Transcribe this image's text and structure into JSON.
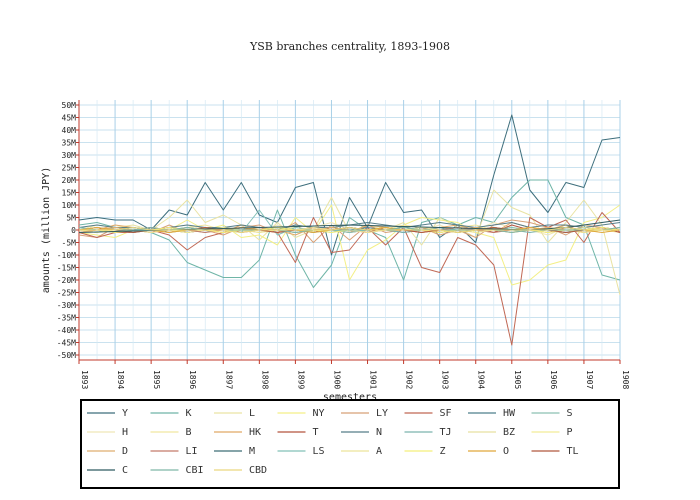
{
  "chart_data": {
    "type": "line",
    "title": "YSB branches centrality, 1893-1908",
    "xlabel": "semesters",
    "ylabel": "amounts (million JPY)",
    "x": [
      1893,
      1893.5,
      1894,
      1894.5,
      1895,
      1895.5,
      1896,
      1896.5,
      1897,
      1897.5,
      1898,
      1898.5,
      1899,
      1899.5,
      1900,
      1900.5,
      1901,
      1901.5,
      1902,
      1902.5,
      1903,
      1903.5,
      1904,
      1904.5,
      1905,
      1905.5,
      1906,
      1906.5,
      1907,
      1907.5,
      1908
    ],
    "xlim": [
      1893,
      1908
    ],
    "xticks": [
      "1893",
      "1894",
      "1895",
      "1896",
      "1897",
      "1898",
      "1899",
      "1900",
      "1901",
      "1902",
      "1903",
      "1904",
      "1905",
      "1906",
      "1907",
      "1908"
    ],
    "ylim": [
      -52,
      52
    ],
    "yticks": [
      "50M",
      "45M",
      "40M",
      "35M",
      "30M",
      "25M",
      "20M",
      "15M",
      "10M",
      "5M",
      "0",
      "-5M",
      "-10M",
      "-15M",
      "-20M",
      "-25M",
      "-30M",
      "-35M",
      "-40M",
      "-45M",
      "-50M"
    ],
    "ytick_values": [
      50,
      45,
      40,
      35,
      30,
      25,
      20,
      15,
      10,
      5,
      0,
      -5,
      -10,
      -15,
      -20,
      -25,
      -30,
      -35,
      -40,
      -45,
      -50
    ],
    "grid": true,
    "legend_position": "bottom",
    "series": [
      {
        "name": "Y",
        "color": "#3d6e7c",
        "values": [
          4,
          5,
          4,
          4,
          0,
          8,
          6,
          19,
          8,
          19,
          6,
          3,
          17,
          19,
          -10,
          13,
          1,
          19,
          7,
          8,
          -3,
          2,
          -5,
          22,
          46,
          16,
          7,
          19,
          17,
          36,
          37
        ]
      },
      {
        "name": "K",
        "color": "#6fb5a7",
        "values": [
          2,
          3,
          1,
          0,
          -1,
          -4,
          -13,
          -16,
          -19,
          -19,
          -12,
          8,
          -10,
          -23,
          -14,
          5,
          0,
          -3,
          -20,
          3,
          5,
          2,
          5,
          3,
          13,
          20,
          20,
          5,
          2,
          -18,
          -20
        ]
      },
      {
        "name": "L",
        "color": "#e9e3a3",
        "values": [
          0,
          2,
          1,
          2,
          0,
          5,
          12,
          3,
          6,
          2,
          -4,
          3,
          -3,
          0,
          13,
          -1,
          2,
          0,
          3,
          -6,
          5,
          1,
          -3,
          16,
          9,
          6,
          -5,
          3,
          12,
          2,
          -26
        ]
      },
      {
        "name": "NY",
        "color": "#f3ef86",
        "values": [
          -1,
          -2,
          -3,
          0,
          1,
          0,
          4,
          0,
          2,
          -3,
          -2,
          -6,
          5,
          -1,
          10,
          -20,
          -8,
          -4,
          2,
          5,
          4,
          3,
          -1,
          -3,
          -22,
          -20,
          -14,
          -12,
          3,
          5,
          10
        ]
      },
      {
        "name": "LY",
        "color": "#d8a178",
        "values": [
          -2,
          -3,
          1,
          0,
          -1,
          2,
          -1,
          0,
          -2,
          1,
          2,
          -1,
          3,
          -5,
          2,
          -4,
          2,
          -1,
          0,
          1,
          -2,
          0,
          -3,
          2,
          4,
          3,
          1,
          -2,
          2,
          1,
          -1
        ]
      },
      {
        "name": "SF",
        "color": "#c06855",
        "values": [
          -1,
          -3,
          -1,
          -1,
          0,
          -2,
          -8,
          -3,
          -1,
          0,
          1,
          -1,
          -13,
          5,
          -9,
          -8,
          1,
          -6,
          1,
          -15,
          -17,
          -3,
          -6,
          -14,
          -46,
          5,
          1,
          4,
          -5,
          7,
          -1
        ]
      },
      {
        "name": "HW",
        "color": "#4d7f8c",
        "values": [
          1,
          0,
          -1,
          0,
          1,
          -1,
          0,
          1,
          0,
          0,
          1,
          0,
          -1,
          0,
          1,
          0,
          1,
          0,
          -1,
          0,
          1,
          -1,
          0,
          1,
          0,
          1,
          0,
          -1,
          0,
          1,
          0
        ]
      },
      {
        "name": "S",
        "color": "#8cc0b2",
        "values": [
          0,
          -1,
          1,
          0,
          0,
          1,
          0,
          -1,
          1,
          0,
          0,
          1,
          0,
          0,
          -1,
          1,
          0,
          0,
          1,
          0,
          -1,
          0,
          1,
          0,
          0,
          1,
          0,
          -1,
          1,
          0,
          0
        ]
      },
      {
        "name": "H",
        "color": "#efe6b6",
        "values": [
          0,
          1,
          0,
          -1,
          0,
          1,
          2,
          0,
          1,
          0,
          -1,
          2,
          0,
          1,
          3,
          0,
          -1,
          2,
          1,
          0,
          2,
          -1,
          0,
          3,
          1,
          0,
          -2,
          1,
          2,
          0,
          1
        ]
      },
      {
        "name": "B",
        "color": "#f1e6a0",
        "values": [
          0,
          0,
          1,
          0,
          -1,
          0,
          1,
          2,
          0,
          -1,
          1,
          0,
          2,
          1,
          0,
          1,
          -1,
          0,
          2,
          1,
          0,
          1,
          2,
          0,
          -1,
          1,
          0,
          2,
          1,
          0,
          -1
        ]
      },
      {
        "name": "HK",
        "color": "#e1a966",
        "values": [
          -1,
          0,
          2,
          1,
          0,
          -1,
          1,
          0,
          -1,
          2,
          1,
          0,
          -2,
          1,
          0,
          -1,
          2,
          1,
          0,
          -1,
          1,
          2,
          0,
          -1,
          3,
          1,
          0,
          2,
          -1,
          1,
          0
        ]
      },
      {
        "name": "T",
        "color": "#b3553f",
        "values": [
          0,
          1,
          -1,
          0,
          1,
          0,
          -1,
          0,
          1,
          -1,
          0,
          1,
          0,
          -1,
          1,
          0,
          -1,
          1,
          0,
          1,
          -1,
          0,
          1,
          -1,
          2,
          0,
          -1,
          1,
          0,
          1,
          -1
        ]
      },
      {
        "name": "N",
        "color": "#567e89",
        "values": [
          1,
          2,
          1,
          1,
          0,
          1,
          2,
          1,
          1,
          2,
          1,
          0,
          2,
          1,
          1,
          2,
          3,
          2,
          1,
          2,
          3,
          2,
          1,
          2,
          3,
          1,
          2,
          2,
          1,
          2,
          3
        ]
      },
      {
        "name": "TJ",
        "color": "#7cb3ae",
        "values": [
          0,
          1,
          0,
          0,
          1,
          0,
          -1,
          0,
          1,
          0,
          0,
          1,
          0,
          -1,
          0,
          1,
          0,
          0,
          -1,
          0,
          1,
          0,
          0,
          1,
          0,
          -1,
          0,
          1,
          0,
          0,
          1
        ]
      },
      {
        "name": "BZ",
        "color": "#e6e0a0",
        "values": [
          0,
          0,
          1,
          0,
          0,
          -1,
          0,
          1,
          0,
          0,
          1,
          0,
          -1,
          0,
          1,
          0,
          0,
          1,
          0,
          -1,
          0,
          1,
          0,
          0,
          1,
          0,
          -1,
          0,
          1,
          0,
          0
        ]
      },
      {
        "name": "P",
        "color": "#f2ec98",
        "values": [
          0,
          -1,
          0,
          1,
          0,
          0,
          -1,
          0,
          1,
          0,
          -1,
          0,
          1,
          0,
          0,
          -1,
          0,
          1,
          0,
          0,
          -1,
          0,
          1,
          0,
          -1,
          0,
          1,
          0,
          -1,
          0,
          1
        ]
      },
      {
        "name": "D",
        "color": "#dfae6f",
        "values": [
          -1,
          0,
          1,
          0,
          -1,
          0,
          1,
          0,
          -1,
          0,
          1,
          0,
          -1,
          0,
          1,
          0,
          -1,
          0,
          1,
          0,
          -1,
          0,
          1,
          0,
          -1,
          0,
          1,
          0,
          -1,
          0,
          1
        ]
      },
      {
        "name": "LI",
        "color": "#c47a6a",
        "values": [
          0,
          1,
          0,
          -1,
          0,
          1,
          0,
          -1,
          0,
          1,
          0,
          -1,
          0,
          1,
          0,
          -1,
          0,
          1,
          0,
          -1,
          0,
          1,
          0,
          -1,
          0,
          1,
          0,
          -1,
          0,
          1,
          0
        ]
      },
      {
        "name": "M",
        "color": "#3f6d76",
        "values": [
          0,
          0,
          0,
          1,
          0,
          0,
          0,
          1,
          0,
          0,
          0,
          1,
          0,
          0,
          0,
          1,
          0,
          0,
          0,
          1,
          0,
          0,
          0,
          1,
          0,
          0,
          0,
          1,
          0,
          0,
          0
        ]
      },
      {
        "name": "LS",
        "color": "#82c1b7",
        "values": [
          1,
          0,
          0,
          -1,
          0,
          0,
          1,
          0,
          0,
          -1,
          8,
          -2,
          1,
          0,
          0,
          -1,
          0,
          0,
          1,
          0,
          0,
          -1,
          0,
          0,
          1,
          0,
          0,
          -1,
          0,
          0,
          1
        ]
      },
      {
        "name": "A",
        "color": "#ece39a",
        "values": [
          0,
          1,
          0,
          0,
          -1,
          0,
          0,
          1,
          0,
          0,
          -1,
          0,
          0,
          1,
          0,
          0,
          -1,
          0,
          0,
          1,
          0,
          0,
          -1,
          0,
          0,
          1,
          0,
          0,
          -1,
          0,
          0
        ]
      },
      {
        "name": "Z",
        "color": "#f4ef7a",
        "values": [
          0,
          0,
          -1,
          0,
          0,
          1,
          0,
          0,
          -1,
          0,
          0,
          1,
          0,
          0,
          -1,
          0,
          0,
          1,
          0,
          0,
          -1,
          0,
          0,
          1,
          0,
          0,
          -1,
          0,
          0,
          1,
          0
        ]
      },
      {
        "name": "O",
        "color": "#e0a83a",
        "values": [
          0,
          1,
          0,
          0,
          0,
          -1,
          0,
          0,
          0,
          1,
          0,
          0,
          0,
          -1,
          0,
          0,
          0,
          1,
          0,
          0,
          0,
          -1,
          0,
          0,
          0,
          1,
          0,
          0,
          0,
          -1,
          0
        ]
      },
      {
        "name": "TL",
        "color": "#b0583e",
        "values": [
          0,
          0,
          0,
          -1,
          0,
          0,
          0,
          1,
          0,
          0,
          0,
          -1,
          0,
          0,
          0,
          1,
          0,
          0,
          0,
          -1,
          0,
          0,
          0,
          1,
          0,
          0,
          0,
          -1,
          0,
          0,
          0
        ]
      },
      {
        "name": "C",
        "color": "#2f5b60",
        "values": [
          -1,
          -0.8,
          -0.6,
          -0.4,
          -0.2,
          0,
          0.2,
          0.4,
          0.6,
          0.8,
          1,
          1.2,
          1.4,
          1.6,
          1.8,
          2,
          1.8,
          1.6,
          1.4,
          1.2,
          1,
          0.8,
          0.6,
          0.4,
          0.2,
          0,
          0.5,
          1,
          2,
          3,
          4
        ]
      },
      {
        "name": "CBI",
        "color": "#7fb7a8",
        "values": [
          0,
          0,
          0,
          0,
          0,
          0,
          1,
          0,
          0,
          0,
          0,
          0,
          -1,
          0,
          0,
          0,
          0,
          0,
          1,
          0,
          0,
          0,
          0,
          0,
          -1,
          0,
          0,
          0,
          0,
          0,
          1
        ]
      },
      {
        "name": "CBD",
        "color": "#e9d77f",
        "values": [
          0,
          0,
          0,
          1,
          0,
          0,
          0,
          0,
          0,
          -1,
          0,
          0,
          0,
          0,
          0,
          1,
          0,
          0,
          0,
          0,
          0,
          -1,
          0,
          0,
          0,
          0,
          0,
          1,
          0,
          0,
          0
        ]
      }
    ]
  }
}
